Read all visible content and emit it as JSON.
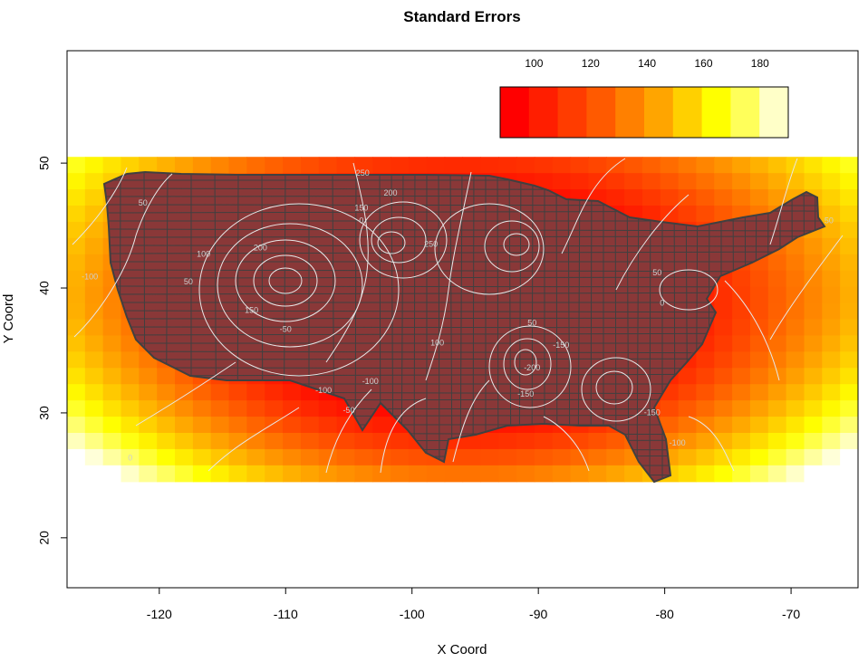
{
  "title": "Standard Errors",
  "xlabel": "X Coord",
  "ylabel": "Y Coord",
  "x_ticks": [
    -120,
    -110,
    -100,
    -90,
    -80,
    -70
  ],
  "y_ticks": [
    20,
    30,
    40,
    50
  ],
  "xlim": [
    -127.3,
    -64.7
  ],
  "ylim": [
    16.0,
    59.0
  ],
  "raster_extent": {
    "x": [
      -127.3,
      -64.7
    ],
    "y": [
      24.5,
      50.5
    ]
  },
  "legend": {
    "ticks": [
      100,
      120,
      140,
      160,
      180
    ],
    "range": [
      88,
      190
    ],
    "colors": [
      "#ff0000",
      "#ff1e00",
      "#ff3c00",
      "#ff5a00",
      "#ff8000",
      "#ffa500",
      "#ffd000",
      "#ffff00",
      "#ffff5a",
      "#ffffc8"
    ]
  },
  "colors": {
    "map_border": "#404040",
    "contour": "#e8e8e8"
  },
  "chart_data": {
    "type": "heatmap",
    "title": "Standard Errors",
    "xlabel": "X Coord",
    "ylabel": "Y Coord",
    "xlim": [
      -127.3,
      -64.7
    ],
    "ylim": [
      16.0,
      59.0
    ],
    "colorscale": {
      "min": 88,
      "max": 190,
      "ticks": [
        100,
        120,
        140,
        160,
        180
      ]
    },
    "description_values": {
      "center_level": 90,
      "corner_levels": {
        "southwest": 185,
        "southeast": 190,
        "northwest": 140,
        "northeast": 150
      }
    },
    "contour_labels": [
      {
        "x": -116.5,
        "y": 42.5,
        "text": "100"
      },
      {
        "x": -112.0,
        "y": 43.0,
        "text": "200"
      },
      {
        "x": -117.7,
        "y": 40.3,
        "text": "50"
      },
      {
        "x": -121.3,
        "y": 46.6,
        "text": "50"
      },
      {
        "x": -125.5,
        "y": 40.7,
        "text": "-100"
      },
      {
        "x": -112.7,
        "y": 38.0,
        "text": "150"
      },
      {
        "x": -107.0,
        "y": 31.6,
        "text": "-100"
      },
      {
        "x": -110.0,
        "y": 36.5,
        "text": "-50"
      },
      {
        "x": -103.9,
        "y": 49.0,
        "text": "250"
      },
      {
        "x": -101.7,
        "y": 47.4,
        "text": "200"
      },
      {
        "x": -104.0,
        "y": 46.2,
        "text": "150"
      },
      {
        "x": -104.0,
        "y": 45.2,
        "text": "0"
      },
      {
        "x": -98.5,
        "y": 43.3,
        "text": "250"
      },
      {
        "x": -98.0,
        "y": 35.4,
        "text": "100"
      },
      {
        "x": -103.3,
        "y": 32.3,
        "text": "-100"
      },
      {
        "x": -105.0,
        "y": 30.0,
        "text": "-50"
      },
      {
        "x": -122.3,
        "y": 26.2,
        "text": "0"
      },
      {
        "x": -90.5,
        "y": 37.0,
        "text": "50"
      },
      {
        "x": -88.2,
        "y": 35.2,
        "text": "-150"
      },
      {
        "x": -90.5,
        "y": 33.4,
        "text": "-200"
      },
      {
        "x": -91.0,
        "y": 31.3,
        "text": "-150"
      },
      {
        "x": -81.0,
        "y": 29.8,
        "text": "-150"
      },
      {
        "x": -79.0,
        "y": 27.4,
        "text": "-100"
      },
      {
        "x": -80.6,
        "y": 41.0,
        "text": "50"
      },
      {
        "x": -80.2,
        "y": 38.6,
        "text": "0"
      },
      {
        "x": -67.0,
        "y": 45.2,
        "text": "50"
      }
    ]
  }
}
